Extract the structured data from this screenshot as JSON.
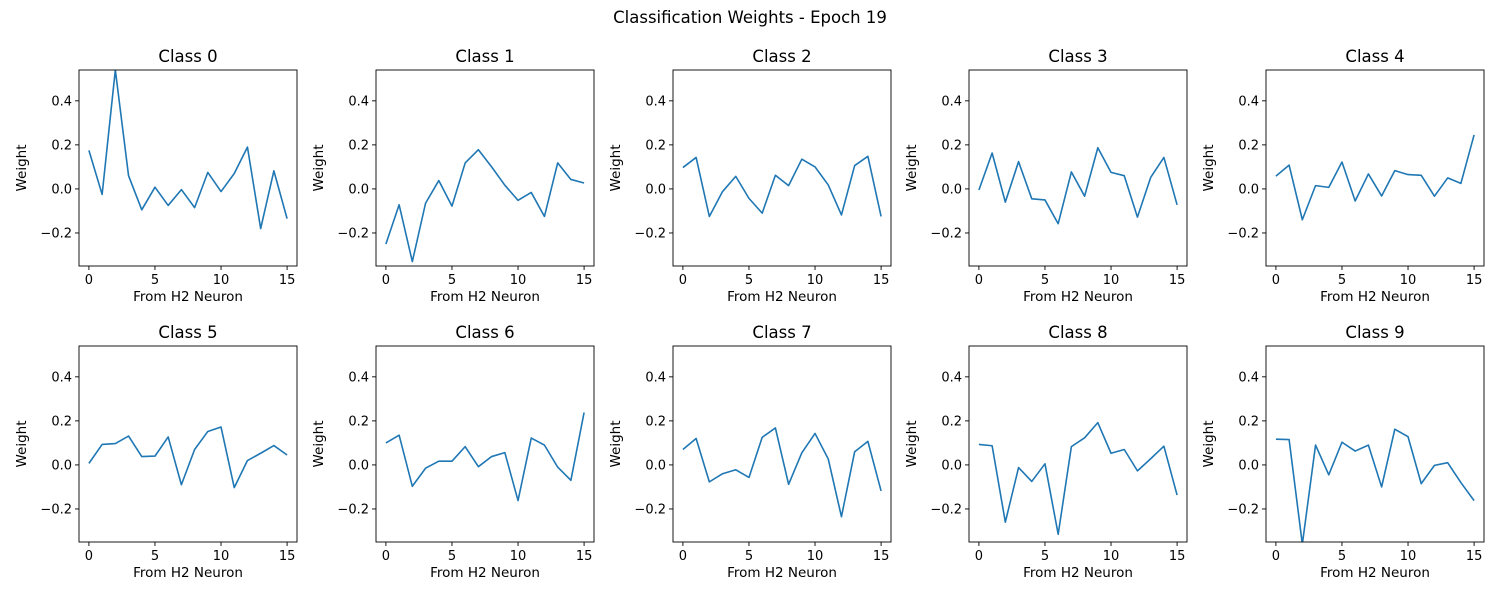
{
  "figure": {
    "suptitle": "Classification Weights - Epoch 19"
  },
  "chart_data": {
    "type": "line",
    "layout": "2x5 grid of subplots",
    "grid": false,
    "line_color": "#1f77b4",
    "xlabel": "From H2 Neuron",
    "ylabel": "Weight",
    "xlim": [
      -0.75,
      15.75
    ],
    "ylim": [
      -0.35,
      0.54
    ],
    "xticks": [
      0,
      5,
      10,
      15
    ],
    "yticks": [
      -0.2,
      0.0,
      0.2,
      0.4
    ],
    "ytick_labels": [
      "−0.2",
      "0.0",
      "0.2",
      "0.4"
    ],
    "x": [
      0,
      1,
      2,
      3,
      4,
      5,
      6,
      7,
      8,
      9,
      10,
      11,
      12,
      13,
      14,
      15
    ],
    "subplots": [
      {
        "title": "Class 0",
        "values": [
          0.175,
          -0.025,
          0.54,
          0.06,
          -0.095,
          0.008,
          -0.075,
          -0.003,
          -0.085,
          0.075,
          -0.012,
          0.07,
          0.19,
          -0.18,
          0.082,
          -0.135
        ]
      },
      {
        "title": "Class 1",
        "values": [
          -0.25,
          -0.072,
          -0.33,
          -0.065,
          0.038,
          -0.078,
          0.118,
          0.178,
          0.1,
          0.017,
          -0.052,
          -0.016,
          -0.125,
          0.118,
          0.043,
          0.027
        ]
      },
      {
        "title": "Class 2",
        "values": [
          0.097,
          0.143,
          -0.125,
          -0.012,
          0.057,
          -0.043,
          -0.11,
          0.062,
          0.015,
          0.135,
          0.1,
          0.018,
          -0.118,
          0.106,
          0.148,
          -0.125
        ]
      },
      {
        "title": "Class 3",
        "values": [
          -0.005,
          0.163,
          -0.06,
          0.124,
          -0.045,
          -0.05,
          -0.158,
          0.077,
          -0.033,
          0.187,
          0.075,
          0.06,
          -0.128,
          0.052,
          0.143,
          -0.072
        ]
      },
      {
        "title": "Class 4",
        "values": [
          0.058,
          0.108,
          -0.14,
          0.015,
          0.007,
          0.122,
          -0.055,
          0.068,
          -0.032,
          0.083,
          0.065,
          0.062,
          -0.033,
          0.05,
          0.025,
          0.245
        ]
      },
      {
        "title": "Class 5",
        "values": [
          0.007,
          0.093,
          0.097,
          0.131,
          0.038,
          0.04,
          0.127,
          -0.09,
          0.07,
          0.152,
          0.172,
          -0.103,
          0.02,
          0.053,
          0.088,
          0.045
        ]
      },
      {
        "title": "Class 6",
        "values": [
          0.1,
          0.135,
          -0.097,
          -0.015,
          0.017,
          0.017,
          0.083,
          -0.008,
          0.038,
          0.056,
          -0.162,
          0.122,
          0.09,
          -0.01,
          -0.07,
          0.238
        ]
      },
      {
        "title": "Class 7",
        "values": [
          0.07,
          0.12,
          -0.077,
          -0.04,
          -0.022,
          -0.057,
          0.125,
          0.168,
          -0.088,
          0.055,
          0.143,
          0.027,
          -0.235,
          0.06,
          0.107,
          -0.118
        ]
      },
      {
        "title": "Class 8",
        "values": [
          0.093,
          0.087,
          -0.26,
          -0.012,
          -0.075,
          0.005,
          -0.315,
          0.083,
          0.123,
          0.192,
          0.053,
          0.07,
          -0.027,
          0.028,
          0.085,
          -0.137
        ]
      },
      {
        "title": "Class 9",
        "values": [
          0.117,
          0.115,
          -0.36,
          0.09,
          -0.045,
          0.103,
          0.063,
          0.09,
          -0.1,
          0.162,
          0.128,
          -0.085,
          -0.002,
          0.01,
          -0.08,
          -0.162
        ]
      }
    ]
  }
}
